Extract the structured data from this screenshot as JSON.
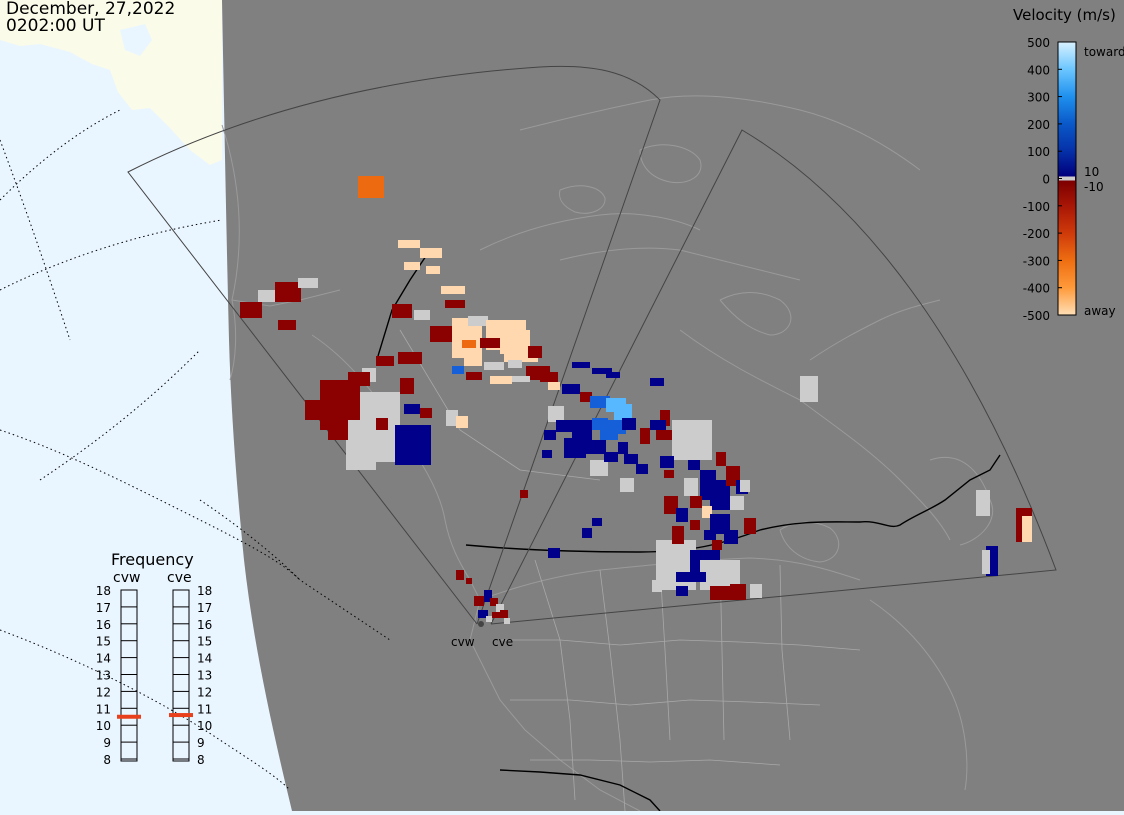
{
  "header": {
    "date": "December, 27,2022",
    "time": "0202:00 UT"
  },
  "radars": [
    {
      "code": "cvw"
    },
    {
      "code": "cve"
    }
  ],
  "colors": {
    "ocean": "#eaf6ff",
    "ice": "#fafbe9",
    "night": "#808080",
    "coast": "#9a9a9a",
    "border": "#000000",
    "fov": "#4a4a4a",
    "gray_scatter": "#cccccc",
    "frequency_marker": "#e8401c"
  },
  "colorbar": {
    "title": "Velocity (m/s)",
    "ticks": [
      "500",
      "400",
      "300",
      "200",
      "100",
      "0",
      "-100",
      "-200",
      "-300",
      "-400",
      "-500"
    ],
    "toward_label": "toward",
    "away_label": "away",
    "zero_pos_label": "10",
    "zero_neg_label": "-10",
    "range": [
      -500,
      500
    ],
    "stops": [
      {
        "v": 500,
        "c": "#d8f1ff"
      },
      {
        "v": 400,
        "c": "#6cc6ff"
      },
      {
        "v": 300,
        "c": "#1f90ee"
      },
      {
        "v": 200,
        "c": "#0a58c8"
      },
      {
        "v": 100,
        "c": "#0530a8"
      },
      {
        "v": 10,
        "c": "#00007e"
      },
      {
        "v": -10,
        "c": "#7e0000"
      },
      {
        "v": -100,
        "c": "#a81606"
      },
      {
        "v": -200,
        "c": "#cf3a0a"
      },
      {
        "v": -300,
        "c": "#ee6e12"
      },
      {
        "v": -400,
        "c": "#ff9a3a"
      },
      {
        "v": -500,
        "c": "#ffdfb6"
      }
    ]
  },
  "frequency": {
    "title": "Frequency",
    "scale": [
      "18",
      "17",
      "16",
      "15",
      "14",
      "13",
      "12",
      "11",
      "10",
      "9",
      "8"
    ],
    "radars": [
      {
        "code": "cvw",
        "value_mhz": 10.5
      },
      {
        "code": "cve",
        "value_mhz": 10.6
      }
    ]
  }
}
